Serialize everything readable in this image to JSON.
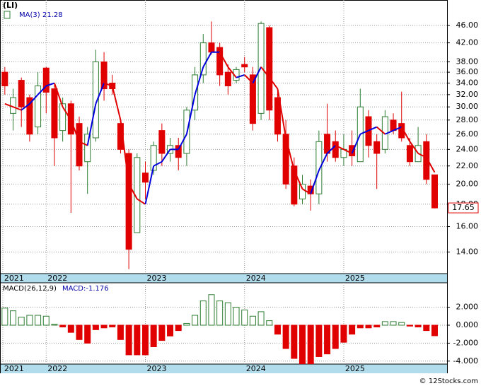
{
  "footer": "© 12Stocks.com",
  "chart_data": [
    {
      "type": "candlestick",
      "title": "(LI)",
      "log_scale": true,
      "grid": true,
      "up_color": "#2e7d32",
      "down_color": "#e00000",
      "ma_up_color": "#0000dd",
      "ma_down_color": "#e00000",
      "ma_name": "MA(3)",
      "xlim": [
        -0.5,
        53.5
      ],
      "xticks": [
        {
          "value": -0.25,
          "label": "2021"
        },
        {
          "value": 5,
          "label": "2022"
        },
        {
          "value": 17,
          "label": "2023"
        },
        {
          "value": 29,
          "label": "2024"
        },
        {
          "value": 41,
          "label": "2025"
        }
      ],
      "ylim": [
        12.5,
        52.6
      ],
      "yticks": [
        {
          "value": 14,
          "label": "14.00"
        },
        {
          "value": 16,
          "label": "16.00"
        },
        {
          "value": 18,
          "label": "18.00"
        },
        {
          "value": 20,
          "label": "20.00"
        },
        {
          "value": 22,
          "label": "22.00"
        },
        {
          "value": 24,
          "label": "24.00"
        },
        {
          "value": 26,
          "label": "26.00"
        },
        {
          "value": 28,
          "label": "28.00"
        },
        {
          "value": 30,
          "label": "30.00"
        },
        {
          "value": 32,
          "label": "32.00"
        },
        {
          "value": 34,
          "label": "34.00"
        },
        {
          "value": 36,
          "label": "36.00"
        },
        {
          "value": 38,
          "label": "38.00"
        },
        {
          "value": 42,
          "label": "42.00"
        },
        {
          "value": 46,
          "label": "46.00"
        }
      ],
      "open": [
        36,
        29,
        34.5,
        31.5,
        27,
        36.8,
        33,
        26.5,
        30.5,
        27.5,
        22.5,
        25.5,
        38,
        34,
        27.5,
        23.5,
        15.5,
        21.2,
        21.5,
        26.5,
        23.5,
        24.5,
        23.5,
        29.5,
        35.5,
        42,
        41,
        36,
        34.5,
        37.5,
        35.5,
        29,
        45.5,
        31.5,
        26,
        22,
        18.5,
        19.8,
        19,
        26,
        25,
        23,
        24.5,
        22.5,
        28.5,
        25,
        24,
        28,
        27.5,
        24.5,
        22.5,
        25,
        21
      ],
      "high": [
        37,
        33,
        35,
        32,
        36,
        37,
        34,
        31.5,
        31,
        28.5,
        27,
        40.5,
        40,
        35.5,
        28,
        24,
        23.5,
        22.5,
        25,
        27.5,
        25.5,
        25.5,
        30,
        37,
        44,
        47,
        42,
        37.5,
        37,
        39,
        37,
        47,
        46,
        32.5,
        28,
        23,
        21,
        20.5,
        26.5,
        30.5,
        26.5,
        26,
        26.5,
        33,
        29.5,
        26,
        29.5,
        29,
        32.5,
        25.5,
        27,
        26,
        21
      ],
      "low": [
        32,
        26.5,
        27,
        25,
        26,
        29,
        22,
        25,
        17.2,
        21.5,
        19,
        25,
        31,
        32,
        23.5,
        12.8,
        15.5,
        18.5,
        21,
        22,
        22.5,
        21.5,
        22,
        28,
        34,
        39.5,
        33.5,
        32,
        34,
        36,
        26.5,
        28,
        28,
        25,
        19.5,
        17.8,
        18,
        17.4,
        18,
        22.5,
        22.5,
        22,
        22,
        22.5,
        23,
        19.5,
        23.5,
        26,
        25,
        22,
        22.5,
        20,
        17.6
      ],
      "close": [
        33.5,
        31.5,
        30,
        26,
        33.5,
        32.4,
        25.5,
        30.5,
        26,
        22,
        26,
        38,
        33,
        33,
        24,
        14.2,
        23,
        20.2,
        24.5,
        23.5,
        24.5,
        23,
        29.5,
        35.5,
        42,
        40,
        35.5,
        33.5,
        36.5,
        37,
        27.5,
        46.5,
        29.5,
        26,
        20,
        18,
        20,
        19,
        25,
        23.5,
        23,
        24,
        23.2,
        30,
        24.5,
        23.5,
        28.5,
        26.5,
        25.5,
        22.5,
        24.5,
        20.5,
        17.65
      ],
      "ma": [
        30.5,
        30,
        29.5,
        30.5,
        32,
        33.5,
        34,
        30,
        28,
        25,
        24.5,
        30.5,
        34,
        33.5,
        28,
        20,
        18.5,
        18,
        22,
        22.5,
        24,
        24,
        26,
        32,
        37,
        40,
        40,
        37,
        35,
        35.5,
        34,
        37,
        35,
        33,
        25.5,
        21.5,
        19.5,
        19,
        21.5,
        23.5,
        24.5,
        24,
        23.5,
        26,
        26.5,
        27,
        26,
        26.5,
        27,
        25,
        23.5,
        23,
        21.28
      ]
    },
    {
      "type": "bar",
      "title": "MACD(26,12,9)",
      "status": "MACD:-1.176",
      "grid": true,
      "up_color": "#2e7d32",
      "down_color": "#e00000",
      "xlim": [
        -0.5,
        53.5
      ],
      "xticks": [
        {
          "value": -0.25,
          "label": "2021"
        },
        {
          "value": 5,
          "label": "2022"
        },
        {
          "value": 17,
          "label": "2023"
        },
        {
          "value": 29,
          "label": "2024"
        },
        {
          "value": 41,
          "label": "2025"
        }
      ],
      "ylim": [
        -4.33,
        4.72
      ],
      "yticks": [
        {
          "value": 2,
          "label": "2.000"
        },
        {
          "value": 0,
          "label": "0.000"
        },
        {
          "value": -2,
          "label": "-2.000"
        },
        {
          "value": -4,
          "label": "-4.000"
        }
      ],
      "values": [
        1.9,
        1.6,
        0.9,
        1.1,
        1.1,
        1.0,
        0.1,
        -0.2,
        -0.8,
        -1.6,
        -2.0,
        -0.5,
        -0.3,
        -0.2,
        -1.6,
        -3.3,
        -3.3,
        -3.3,
        -2.4,
        -1.7,
        -1.2,
        -0.6,
        0.2,
        1.1,
        2.7,
        3.4,
        2.7,
        2.5,
        2.0,
        1.7,
        1.0,
        1.5,
        0.5,
        -1.0,
        -2.6,
        -3.7,
        -4.3,
        -4.3,
        -3.5,
        -3.2,
        -2.6,
        -1.9,
        -1.0,
        -0.3,
        -0.3,
        -0.2,
        0.4,
        0.4,
        0.3,
        -0.1,
        -0.2,
        -0.6,
        -1.176
      ]
    }
  ]
}
